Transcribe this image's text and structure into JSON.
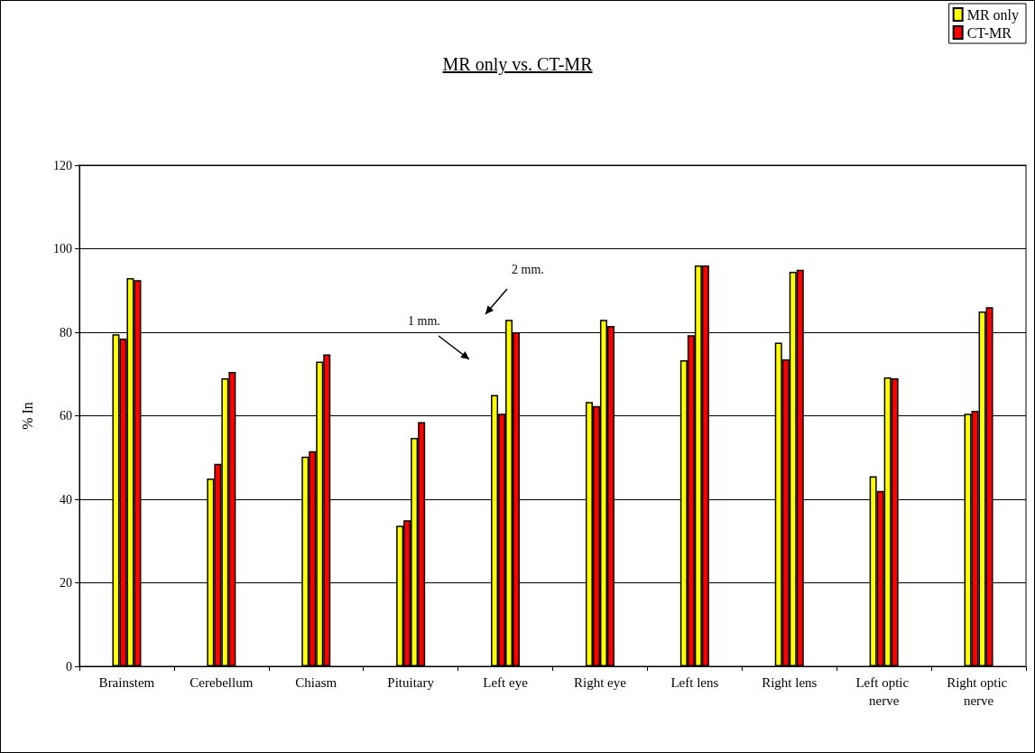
{
  "chart_data": {
    "type": "bar",
    "title": "MR only vs. CT-MR",
    "ylabel": "% In",
    "categories": [
      "Brainstem",
      "Cerebellum",
      "Chiasm",
      "Pituitary",
      "Left eye",
      "Right eye",
      "Left lens",
      "Right lens",
      "Left optic nerve",
      "Right optic nerve"
    ],
    "series": [
      {
        "name": "MR only",
        "color": "#ffff00",
        "values": [
          79.5,
          45,
          50.2,
          33.7,
          65,
          63.3,
          73.3,
          77.5,
          45.5,
          60.5
        ]
      },
      {
        "name": "CT-MR",
        "color": "#ff0000",
        "values": [
          78.5,
          48.5,
          51.5,
          35,
          60.5,
          62.3,
          79.3,
          73.5,
          42,
          61.2
        ]
      },
      {
        "color": "#ffff00",
        "values": [
          93,
          69,
          73,
          54.7,
          83,
          83,
          96,
          94.5,
          69.2,
          85
        ]
      },
      {
        "color": "#ff0000",
        "values": [
          92.5,
          70.5,
          74.7,
          58.5,
          80,
          81.5,
          96,
          95,
          69,
          86
        ]
      }
    ],
    "annotations": [
      "1 mm.",
      "2 mm."
    ],
    "ylim": [
      0,
      120
    ],
    "yticks": [
      0,
      20,
      40,
      60,
      80,
      100,
      120
    ],
    "grid": "y",
    "legend": "top right"
  }
}
